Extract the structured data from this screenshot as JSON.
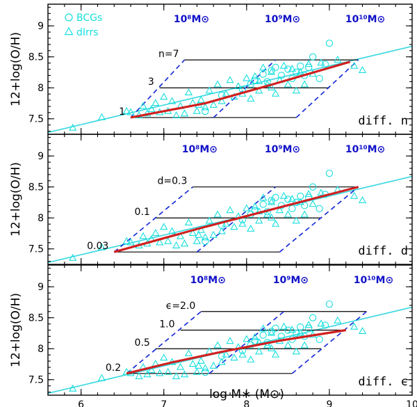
{
  "colors": {
    "data_points": "#16dede",
    "fit_line": "#38d8e0",
    "model_track": "#d02020",
    "iso_mass": "#1a2ed8",
    "iso_param": "#000000",
    "mass_label": "#1010c8"
  },
  "chart_data": {
    "type": "scatter",
    "xlabel": "log M∗ (M⊙)",
    "ylabel": "12+log(O/H)",
    "xlim": [
      5.6,
      10
    ],
    "ylim": [
      7.25,
      9.35
    ],
    "xticks": [
      6,
      7,
      8,
      9,
      10
    ],
    "xtick_labels": [
      "6",
      "7",
      "8",
      "9",
      "10"
    ],
    "yticks": [
      7.5,
      8,
      8.5,
      9
    ],
    "ytick_labels": [
      "7.5",
      "8",
      "8.5",
      "9"
    ],
    "legend": {
      "position": "top-left",
      "entries": [
        {
          "marker": "circle",
          "label": "BCGs"
        },
        {
          "marker": "triangle",
          "label": "dIrrs"
        }
      ]
    },
    "fit_line": {
      "x": [
        5.6,
        10
      ],
      "y": [
        7.28,
        8.67
      ]
    },
    "bcgs": [
      [
        7.5,
        7.62
      ],
      [
        7.95,
        7.97
      ],
      [
        8.05,
        8.06
      ],
      [
        8.2,
        8.22
      ],
      [
        8.3,
        8.28
      ],
      [
        8.35,
        8.33
      ],
      [
        8.42,
        8.2
      ],
      [
        8.5,
        8.3
      ],
      [
        8.55,
        8.15
      ],
      [
        8.6,
        8.25
      ],
      [
        8.65,
        8.35
      ],
      [
        8.7,
        8.2
      ],
      [
        8.75,
        8.33
      ],
      [
        8.8,
        8.5
      ],
      [
        8.88,
        8.15
      ],
      [
        8.95,
        8.38
      ],
      [
        9.0,
        8.72
      ],
      [
        7.7,
        7.88
      ],
      [
        8.1,
        8.12
      ],
      [
        8.25,
        8.1
      ]
    ],
    "dirrs": [
      [
        5.9,
        7.35
      ],
      [
        6.25,
        7.52
      ],
      [
        6.55,
        7.62
      ],
      [
        6.6,
        7.6
      ],
      [
        6.7,
        7.55
      ],
      [
        6.75,
        7.7
      ],
      [
        6.8,
        7.58
      ],
      [
        6.85,
        7.65
      ],
      [
        6.9,
        7.75
      ],
      [
        6.95,
        7.6
      ],
      [
        7.0,
        7.85
      ],
      [
        7.05,
        7.62
      ],
      [
        7.1,
        7.78
      ],
      [
        7.15,
        7.55
      ],
      [
        7.2,
        7.7
      ],
      [
        7.3,
        7.92
      ],
      [
        7.35,
        7.75
      ],
      [
        7.4,
        7.62
      ],
      [
        7.45,
        7.8
      ],
      [
        7.5,
        7.68
      ],
      [
        7.55,
        7.95
      ],
      [
        7.6,
        7.72
      ],
      [
        7.65,
        8.05
      ],
      [
        7.7,
        7.78
      ],
      [
        7.75,
        7.9
      ],
      [
        7.8,
        8.12
      ],
      [
        7.85,
        7.85
      ],
      [
        7.9,
        8.02
      ],
      [
        7.95,
        7.9
      ],
      [
        8.0,
        8.15
      ],
      [
        8.05,
        7.82
      ],
      [
        8.1,
        8.18
      ],
      [
        8.15,
        7.95
      ],
      [
        8.2,
        8.32
      ],
      [
        8.25,
        8.05
      ],
      [
        8.3,
        8.25
      ],
      [
        8.35,
        7.9
      ],
      [
        8.4,
        8.12
      ],
      [
        8.45,
        8.35
      ],
      [
        8.5,
        8.05
      ],
      [
        8.55,
        8.3
      ],
      [
        8.6,
        7.95
      ],
      [
        8.65,
        8.25
      ],
      [
        8.7,
        8.05
      ],
      [
        8.75,
        8.38
      ],
      [
        8.8,
        8.22
      ],
      [
        8.9,
        8.4
      ],
      [
        9.1,
        8.45
      ],
      [
        9.3,
        8.35
      ],
      [
        9.4,
        8.28
      ],
      [
        7.25,
        7.58
      ],
      [
        7.42,
        7.72
      ],
      [
        8.15,
        8.1
      ],
      [
        8.3,
        8.0
      ]
    ],
    "panels": [
      {
        "parameter_label": "diff. n",
        "param_values": [
          "1",
          "3",
          "n=7"
        ],
        "mass_labels": [
          "10⁸M⊙",
          "10⁹M⊙",
          "10¹⁰M⊙"
        ],
        "iso_param_lines": [
          {
            "x": [
              6.6,
              8.6
            ],
            "y": 7.52
          },
          {
            "x": [
              6.95,
              9.0
            ],
            "y": 8.0
          },
          {
            "x": [
              7.25,
              9.35
            ],
            "y": 8.45
          }
        ],
        "iso_mass_lines": [
          {
            "x": [
              6.6,
              7.25
            ],
            "y": [
              7.52,
              8.45
            ]
          },
          {
            "x": [
              7.6,
              8.35
            ],
            "y": [
              7.52,
              8.45
            ]
          },
          {
            "x": [
              8.6,
              9.35
            ],
            "y": [
              7.52,
              8.45
            ]
          }
        ],
        "track": {
          "x": [
            6.6,
            7.5,
            8.3,
            9.25
          ],
          "y": [
            7.52,
            7.75,
            8.05,
            8.42
          ]
        }
      },
      {
        "parameter_label": "diff. d",
        "param_values": [
          "0.03",
          "0.1",
          "d=0.3"
        ],
        "mass_labels": [
          "10⁸M⊙",
          "10⁹M⊙",
          "10¹⁰M⊙"
        ],
        "iso_param_lines": [
          {
            "x": [
              6.4,
              8.4
            ],
            "y": 7.45
          },
          {
            "x": [
              6.9,
              8.9
            ],
            "y": 8.0
          },
          {
            "x": [
              7.35,
              9.35
            ],
            "y": 8.5
          }
        ],
        "iso_mass_lines": [
          {
            "x": [
              6.4,
              7.35
            ],
            "y": [
              7.45,
              8.5
            ]
          },
          {
            "x": [
              7.4,
              8.35
            ],
            "y": [
              7.45,
              8.5
            ]
          },
          {
            "x": [
              8.4,
              9.35
            ],
            "y": [
              7.45,
              8.5
            ]
          }
        ],
        "track": {
          "x": [
            6.4,
            7.4,
            8.4,
            9.35
          ],
          "y": [
            7.45,
            7.82,
            8.17,
            8.5
          ]
        }
      },
      {
        "parameter_label": "diff. ϵ",
        "param_values": [
          "0.2",
          "0.5",
          "1.0",
          "ϵ=2.0"
        ],
        "mass_labels": [
          "10⁸M⊙",
          "10⁹M⊙",
          "10¹⁰M⊙"
        ],
        "iso_param_lines": [
          {
            "x": [
              6.55,
              8.55
            ],
            "y": 7.6
          },
          {
            "x": [
              6.9,
              8.9
            ],
            "y": 8.0
          },
          {
            "x": [
              7.2,
              9.2
            ],
            "y": 8.3
          },
          {
            "x": [
              7.45,
              9.45
            ],
            "y": 8.6
          }
        ],
        "iso_mass_lines": [
          {
            "x": [
              6.55,
              7.45
            ],
            "y": [
              7.6,
              8.6
            ]
          },
          {
            "x": [
              7.55,
              8.45
            ],
            "y": [
              7.6,
              8.6
            ]
          },
          {
            "x": [
              8.55,
              9.45
            ],
            "y": [
              7.6,
              8.6
            ]
          }
        ],
        "track": {
          "x": [
            6.55,
            7.1,
            7.7,
            8.4,
            9.2
          ],
          "y": [
            7.6,
            7.78,
            7.95,
            8.13,
            8.3
          ]
        }
      }
    ]
  }
}
